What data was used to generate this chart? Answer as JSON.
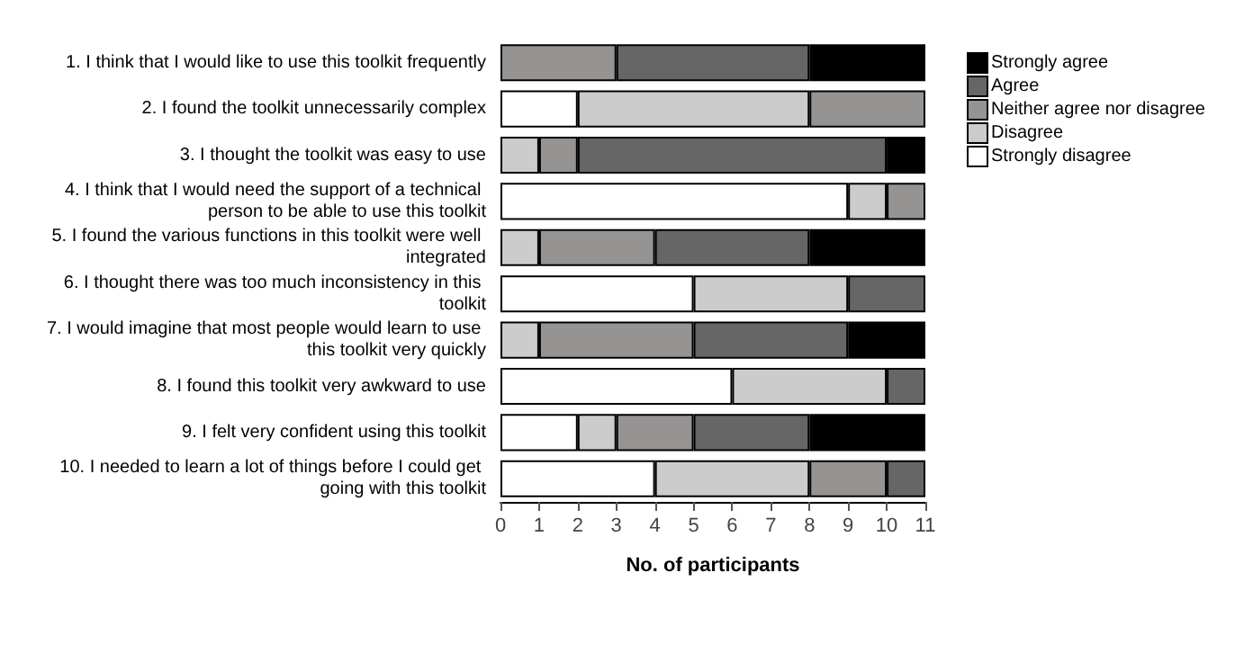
{
  "chart_data": {
    "type": "bar",
    "orientation": "horizontal",
    "stacked": true,
    "xlabel": "No. of participants",
    "categories": [
      "1. I think that I would like to use this toolkit frequently",
      "2. I found the toolkit unnecessarily complex",
      "3. I thought the toolkit was easy to use",
      "4. I think that I would need the support of a technical person to be able to use this toolkit",
      "5. I found the various functions in this toolkit were well integrated",
      "6. I thought there was too much inconsistency in this toolkit",
      "7. I would imagine that most people would learn to use this toolkit very quickly",
      "8. I found this toolkit very awkward to use",
      "9. I felt very confident using this toolkit",
      "10. I needed to learn a lot of things before I could get going with this toolkit"
    ],
    "series": [
      {
        "name": "Strongly disagree",
        "color": "#ffffff",
        "values": [
          0,
          2,
          0,
          9,
          0,
          5,
          0,
          6,
          2,
          4
        ]
      },
      {
        "name": "Disagree",
        "color": "#cccccc",
        "values": [
          0,
          6,
          1,
          1,
          1,
          4,
          1,
          4,
          1,
          4
        ]
      },
      {
        "name": "Neither agree nor disagree",
        "color": "#969393",
        "values": [
          3,
          3,
          1,
          1,
          3,
          0,
          4,
          0,
          2,
          2
        ]
      },
      {
        "name": "Agree",
        "color": "#666666",
        "values": [
          5,
          0,
          8,
          0,
          4,
          2,
          4,
          1,
          3,
          1
        ]
      },
      {
        "name": "Strongly agree",
        "color": "#000000",
        "values": [
          3,
          0,
          1,
          0,
          3,
          0,
          2,
          0,
          3,
          0
        ]
      }
    ],
    "xlim": [
      0,
      11
    ],
    "xticks": [
      0,
      1,
      2,
      3,
      4,
      5,
      6,
      7,
      8,
      9,
      10,
      11
    ],
    "grid": false,
    "legend": "top right"
  }
}
